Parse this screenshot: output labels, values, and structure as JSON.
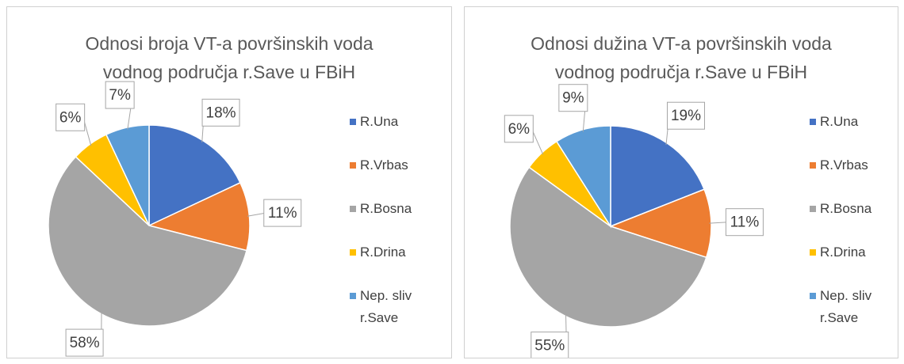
{
  "chart_data": [
    {
      "type": "pie",
      "title": "Odnosi broja VT-a površinskih voda vodnog područja r.Save u FBiH",
      "categories": [
        "R.Una",
        "R.Vrbas",
        "R.Bosna",
        "R.Drina",
        "Nep. sliv r.Save"
      ],
      "values": [
        18,
        11,
        58,
        6,
        7
      ],
      "value_labels": [
        "18%",
        "11%",
        "58%",
        "6%",
        "7%"
      ],
      "colors": [
        "#4472c4",
        "#ed7d31",
        "#a5a5a5",
        "#ffc000",
        "#5b9bd5"
      ],
      "legend": "right"
    },
    {
      "type": "pie",
      "title": "Odnosi dužina VT-a površinskih voda vodnog područja r.Save u FBiH",
      "categories": [
        "R.Una",
        "R.Vrbas",
        "R.Bosna",
        "R.Drina",
        "Nep. sliv r.Save"
      ],
      "values": [
        19,
        11,
        55,
        6,
        9
      ],
      "value_labels": [
        "19%",
        "11%",
        "55%",
        "6%",
        "9%"
      ],
      "colors": [
        "#4472c4",
        "#ed7d31",
        "#a5a5a5",
        "#ffc000",
        "#5b9bd5"
      ],
      "legend": "right"
    }
  ]
}
